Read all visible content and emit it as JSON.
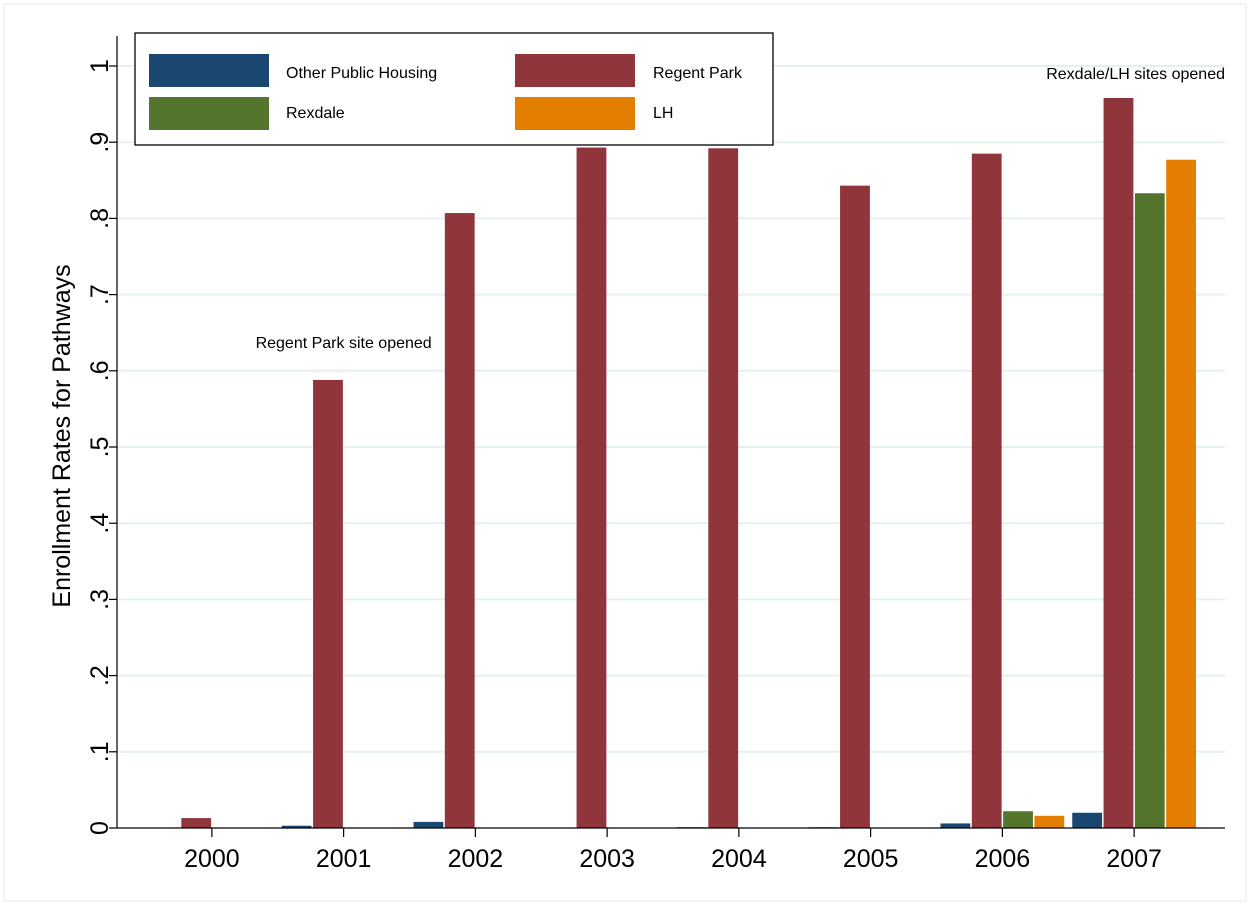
{
  "chart_data": {
    "type": "bar",
    "title": "",
    "xlabel": "",
    "ylabel": "Enrollment Rates for Pathways",
    "ylim": [
      0,
      1.0
    ],
    "yticks": [
      {
        "value": 0,
        "label": "0"
      },
      {
        "value": 0.1,
        "label": ".1"
      },
      {
        "value": 0.2,
        "label": ".2"
      },
      {
        "value": 0.3,
        "label": ".3"
      },
      {
        "value": 0.4,
        "label": ".4"
      },
      {
        "value": 0.5,
        "label": ".5"
      },
      {
        "value": 0.6,
        "label": ".6"
      },
      {
        "value": 0.7,
        "label": ".7"
      },
      {
        "value": 0.8,
        "label": ".8"
      },
      {
        "value": 0.9,
        "label": ".9"
      },
      {
        "value": 1.0,
        "label": "1"
      }
    ],
    "grid": true,
    "legend_position": "top-left",
    "categories": [
      "2000",
      "2001",
      "2002",
      "2003",
      "2004",
      "2005",
      "2006",
      "2007"
    ],
    "series": [
      {
        "name": "Other Public Housing",
        "color": "#1a476f",
        "values": [
          0,
          0.003,
          0.008,
          0,
          0.001,
          0.001,
          0.006,
          0.02
        ]
      },
      {
        "name": "Regent Park",
        "color": "#90353b",
        "values": [
          0.013,
          0.588,
          0.807,
          0.893,
          0.892,
          0.843,
          0.885,
          0.958
        ]
      },
      {
        "name": "Rexdale",
        "color": "#55752f",
        "values": [
          0,
          0,
          0,
          0,
          0,
          0,
          0.022,
          0.833
        ]
      },
      {
        "name": "LH",
        "color": "#e37e00",
        "values": [
          0,
          0,
          0,
          0,
          0,
          0,
          0.016,
          0.877
        ]
      }
    ],
    "annotations": [
      {
        "text": "Regent Park site opened",
        "category": "2001",
        "y": 0.63
      },
      {
        "text": "Rexdale/LH sites opened",
        "category": "2007",
        "y": 0.983
      }
    ]
  }
}
